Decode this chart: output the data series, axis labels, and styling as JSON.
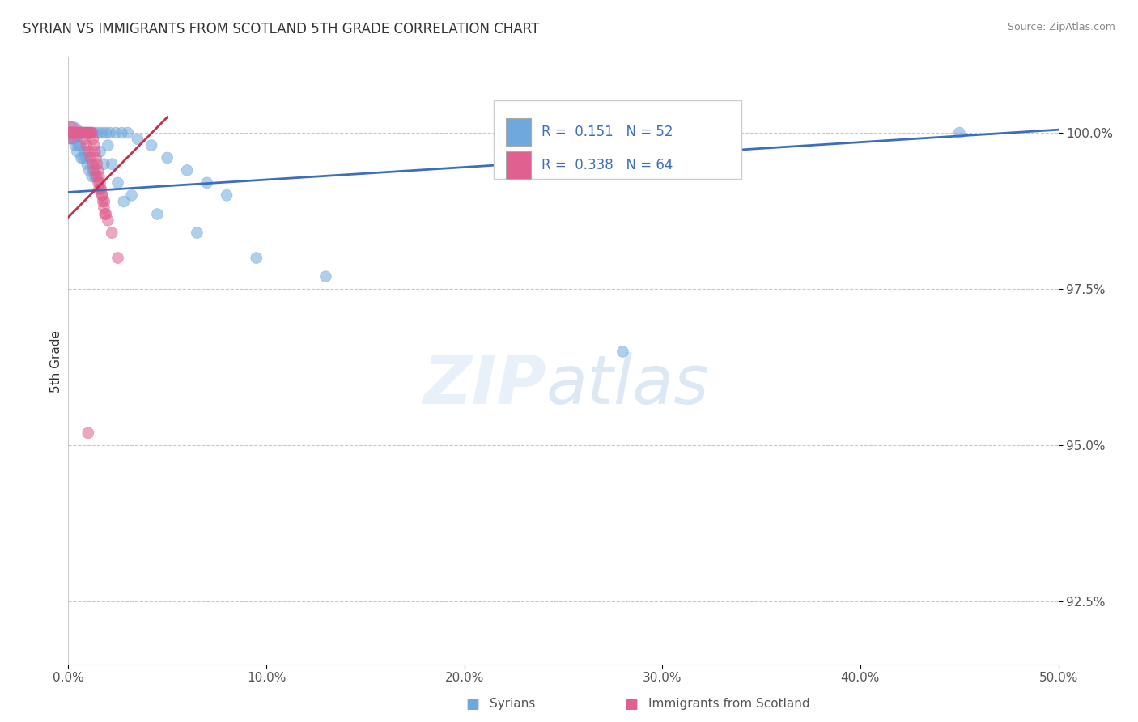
{
  "title": "SYRIAN VS IMMIGRANTS FROM SCOTLAND 5TH GRADE CORRELATION CHART",
  "source_text": "Source: ZipAtlas.com",
  "ylabel": "5th Grade",
  "xlim": [
    0.0,
    50.0
  ],
  "ylim": [
    91.5,
    101.2
  ],
  "yticks": [
    92.5,
    95.0,
    97.5,
    100.0
  ],
  "ytick_labels": [
    "92.5%",
    "95.0%",
    "97.5%",
    "100.0%"
  ],
  "xticks": [
    0.0,
    10.0,
    20.0,
    30.0,
    40.0,
    50.0
  ],
  "xtick_labels": [
    "0.0%",
    "10.0%",
    "20.0%",
    "30.0%",
    "40.0%",
    "50.0%"
  ],
  "legend1_R": "0.151",
  "legend1_N": "52",
  "legend2_R": "0.338",
  "legend2_N": "64",
  "blue_color": "#6fa8dc",
  "pink_color": "#e06090",
  "blue_line_color": "#3d6dbf",
  "pink_line_color": "#c0324a",
  "blue_scatter_x": [
    0.15,
    0.25,
    0.4,
    0.55,
    0.7,
    0.85,
    1.0,
    1.15,
    1.3,
    1.5,
    1.7,
    1.9,
    2.1,
    2.4,
    2.7,
    3.0,
    3.5,
    4.2,
    5.0,
    6.0,
    7.0,
    8.0,
    1.6,
    2.2,
    0.6,
    0.9,
    1.2,
    0.3,
    0.5,
    0.8,
    1.8,
    2.5,
    3.2,
    4.5,
    6.5,
    9.5,
    13.0,
    1.05,
    0.45,
    1.35,
    0.65,
    1.55,
    2.8,
    0.35,
    0.75,
    0.95,
    1.25,
    28.0,
    45.0,
    0.2,
    1.0,
    2.0
  ],
  "blue_scatter_y": [
    100.0,
    100.0,
    100.0,
    100.0,
    100.0,
    100.0,
    100.0,
    100.0,
    100.0,
    100.0,
    100.0,
    100.0,
    100.0,
    100.0,
    100.0,
    100.0,
    99.9,
    99.8,
    99.6,
    99.4,
    99.2,
    99.0,
    99.7,
    99.5,
    99.8,
    99.6,
    99.3,
    99.9,
    99.8,
    99.7,
    99.5,
    99.2,
    99.0,
    98.7,
    98.4,
    98.0,
    97.7,
    99.4,
    99.7,
    99.3,
    99.6,
    99.1,
    98.9,
    99.8,
    99.6,
    99.5,
    99.4,
    96.5,
    100.0,
    100.0,
    100.0,
    99.8
  ],
  "blue_scatter_size": [
    100,
    100,
    100,
    100,
    100,
    100,
    100,
    100,
    100,
    100,
    100,
    100,
    100,
    100,
    100,
    100,
    100,
    100,
    100,
    100,
    100,
    100,
    100,
    100,
    100,
    100,
    100,
    100,
    100,
    100,
    100,
    100,
    100,
    100,
    100,
    100,
    100,
    100,
    100,
    100,
    100,
    100,
    100,
    100,
    100,
    100,
    100,
    100,
    100,
    400,
    100,
    100
  ],
  "pink_scatter_x": [
    0.05,
    0.1,
    0.15,
    0.2,
    0.25,
    0.3,
    0.35,
    0.4,
    0.45,
    0.5,
    0.55,
    0.6,
    0.65,
    0.7,
    0.75,
    0.8,
    0.85,
    0.9,
    0.95,
    1.0,
    1.05,
    1.1,
    1.15,
    1.2,
    1.25,
    1.3,
    1.35,
    1.4,
    1.45,
    1.5,
    1.55,
    1.6,
    1.65,
    1.7,
    1.75,
    1.8,
    1.85,
    0.12,
    0.22,
    0.32,
    0.42,
    0.52,
    0.62,
    0.72,
    0.82,
    0.92,
    1.02,
    1.12,
    1.22,
    1.32,
    1.42,
    1.52,
    1.62,
    1.72,
    1.82,
    2.0,
    2.2,
    2.5,
    0.08,
    1.9,
    0.18,
    0.28,
    0.38,
    1.0
  ],
  "pink_scatter_y": [
    100.0,
    100.0,
    100.0,
    100.0,
    100.0,
    100.0,
    100.0,
    100.0,
    100.0,
    100.0,
    100.0,
    100.0,
    100.0,
    100.0,
    100.0,
    100.0,
    100.0,
    100.0,
    100.0,
    100.0,
    100.0,
    100.0,
    100.0,
    100.0,
    99.9,
    99.8,
    99.7,
    99.6,
    99.5,
    99.4,
    99.3,
    99.2,
    99.1,
    99.0,
    98.9,
    98.8,
    98.7,
    100.0,
    100.0,
    100.0,
    100.0,
    100.0,
    100.0,
    100.0,
    99.9,
    99.8,
    99.7,
    99.6,
    99.5,
    99.4,
    99.3,
    99.2,
    99.1,
    99.0,
    98.9,
    98.6,
    98.4,
    98.0,
    100.0,
    98.7,
    100.0,
    100.0,
    100.0,
    95.2
  ],
  "pink_scatter_size": [
    100,
    100,
    100,
    100,
    100,
    100,
    100,
    100,
    100,
    100,
    100,
    100,
    100,
    100,
    100,
    100,
    100,
    100,
    100,
    100,
    100,
    100,
    100,
    100,
    100,
    100,
    100,
    100,
    100,
    100,
    100,
    100,
    100,
    100,
    100,
    100,
    100,
    100,
    100,
    100,
    100,
    100,
    100,
    100,
    100,
    100,
    100,
    100,
    100,
    100,
    100,
    100,
    100,
    100,
    100,
    100,
    100,
    100,
    400,
    100,
    100,
    100,
    100,
    100
  ],
  "blue_line_x0": 0.0,
  "blue_line_x1": 50.0,
  "blue_line_y0": 99.05,
  "blue_line_y1": 100.05,
  "pink_line_x0": 0.0,
  "pink_line_x1": 5.0,
  "pink_line_y0": 98.65,
  "pink_line_y1": 100.25
}
